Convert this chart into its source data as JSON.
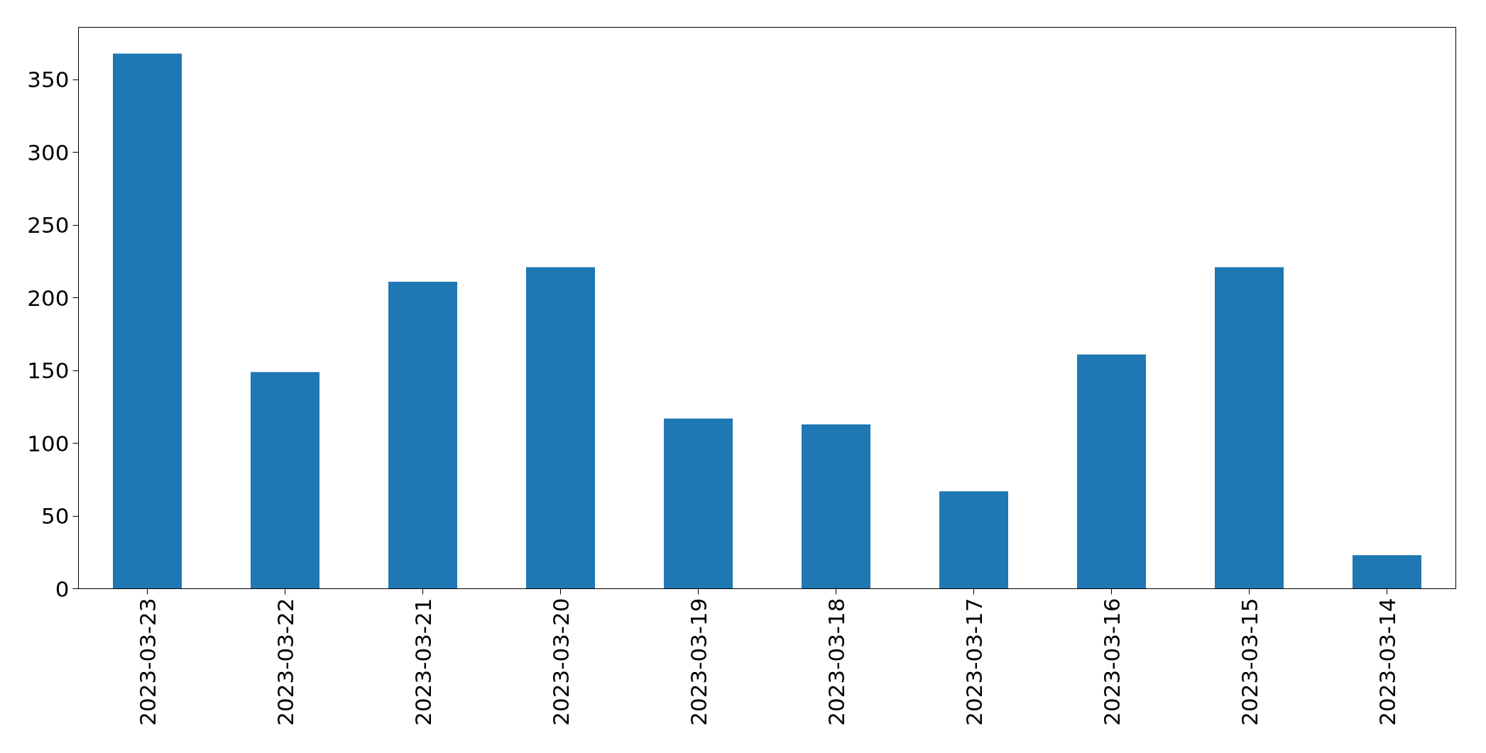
{
  "chart_data": {
    "type": "bar",
    "categories": [
      "2023-03-23",
      "2023-03-22",
      "2023-03-21",
      "2023-03-20",
      "2023-03-19",
      "2023-03-18",
      "2023-03-17",
      "2023-03-16",
      "2023-03-15",
      "2023-03-14"
    ],
    "values": [
      368,
      149,
      211,
      221,
      117,
      113,
      67,
      161,
      221,
      23
    ],
    "color": "#1f77b4",
    "ylim": [
      0,
      386
    ],
    "yticks": [
      0,
      50,
      100,
      150,
      200,
      250,
      300,
      350
    ],
    "grid": false
  }
}
